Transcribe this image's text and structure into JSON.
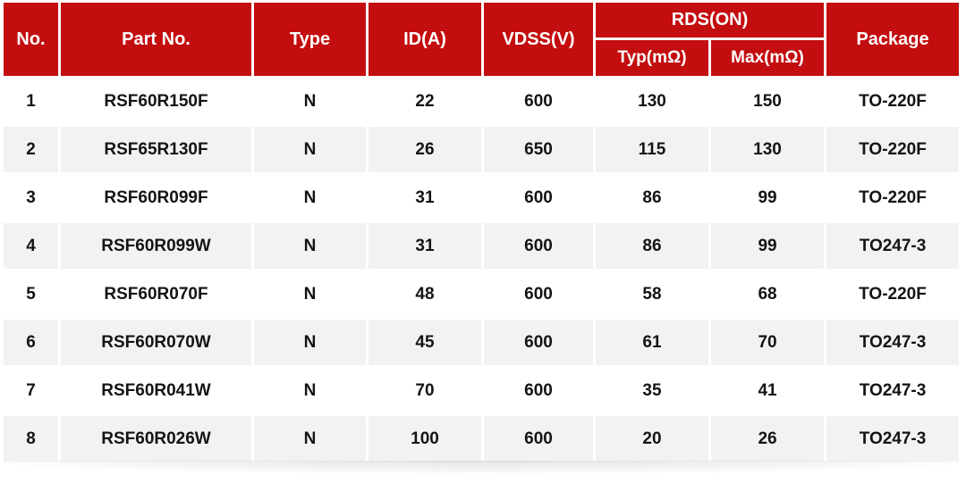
{
  "colors": {
    "header_bg": "#C30D0F",
    "header_text": "#FFFFFF",
    "row_bg": "#FFFFFF",
    "row_alt_bg": "#F2F2F2",
    "body_text": "#141414",
    "page_bg": "#FFFFFF"
  },
  "table": {
    "header": {
      "no": "No.",
      "part_no": "Part No.",
      "type": "Type",
      "id": "ID(A)",
      "vdss": "VDSS(V)",
      "rds_on": "RDS(ON)",
      "rds_typ": "Typ(mΩ)",
      "rds_max": "Max(mΩ)",
      "package": "Package"
    }
  },
  "chart_data": {
    "type": "table",
    "columns": [
      "No.",
      "Part No.",
      "Type",
      "ID(A)",
      "VDSS(V)",
      "RDS(ON) Typ(mΩ)",
      "RDS(ON) Max(mΩ)",
      "Package"
    ],
    "rows": [
      [
        "1",
        "RSF60R150F",
        "N",
        "22",
        "600",
        "130",
        "150",
        "TO-220F"
      ],
      [
        "2",
        "RSF65R130F",
        "N",
        "26",
        "650",
        "115",
        "130",
        "TO-220F"
      ],
      [
        "3",
        "RSF60R099F",
        "N",
        "31",
        "600",
        "86",
        "99",
        "TO-220F"
      ],
      [
        "4",
        "RSF60R099W",
        "N",
        "31",
        "600",
        "86",
        "99",
        "TO247-3"
      ],
      [
        "5",
        "RSF60R070F",
        "N",
        "48",
        "600",
        "58",
        "68",
        "TO-220F"
      ],
      [
        "6",
        "RSF60R070W",
        "N",
        "45",
        "600",
        "61",
        "70",
        "TO247-3"
      ],
      [
        "7",
        "RSF60R041W",
        "N",
        "70",
        "600",
        "35",
        "41",
        "TO247-3"
      ],
      [
        "8",
        "RSF60R026W",
        "N",
        "100",
        "600",
        "20",
        "26",
        "TO247-3"
      ]
    ],
    "layout": {
      "header_levels": 2,
      "merged_header": {
        "label": "RDS(ON)",
        "spans": [
          "Typ(mΩ)",
          "Max(mΩ)"
        ]
      },
      "row_striping": "white / light-gray alternating",
      "grid": "white 3px separators"
    }
  }
}
